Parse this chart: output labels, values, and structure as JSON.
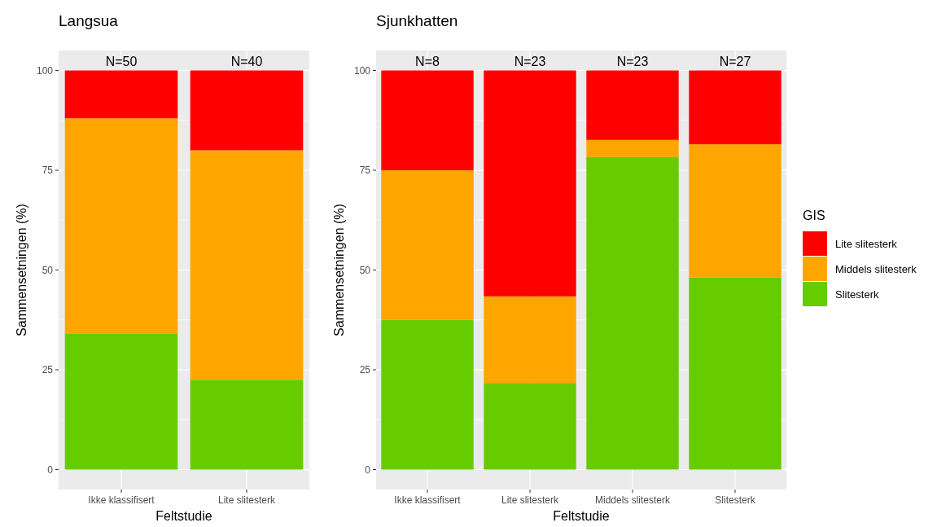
{
  "chart_data": [
    {
      "type": "bar",
      "title": "Langsua",
      "xlabel": "Feltstudie",
      "ylabel": "Sammensetningen (%)",
      "stacked": true,
      "categories": [
        "Ikke klassifisert",
        "Lite slitesterk"
      ],
      "series": [
        {
          "color": "#66cc00",
          "values": [
            34,
            22.5
          ]
        },
        {
          "color": "#ffa500",
          "values": [
            54,
            57.5
          ]
        },
        {
          "color": "#ff0000",
          "values": [
            12,
            20
          ]
        }
      ],
      "ylim": [
        -5,
        105
      ],
      "yticks": [
        0,
        25,
        50,
        75,
        100
      ],
      "grid": true,
      "legend": false,
      "annotations": [
        {
          "text": "N=50",
          "x": "Ikke klassifisert",
          "y": 100
        },
        {
          "text": "N=40",
          "x": "Lite slitesterk",
          "y": 100
        }
      ]
    },
    {
      "type": "bar",
      "title": "Sjunkhatten",
      "xlabel": "Feltstudie",
      "ylabel": "Sammensetningen (%)",
      "stacked": true,
      "legend_title": "GIS",
      "categories": [
        "Ikke klassifisert",
        "Lite slitesterk",
        "Middels slitesterk",
        "Slitesterk"
      ],
      "series": [
        {
          "name": "Slitesterk",
          "color": "#66cc00",
          "values": [
            37.5,
            21.7,
            78.3,
            48.1
          ]
        },
        {
          "name": "Middels slitesterk",
          "color": "#ffa500",
          "values": [
            37.5,
            21.7,
            4.3,
            33.4
          ]
        },
        {
          "name": "Lite slitesterk",
          "color": "#ff0000",
          "values": [
            25,
            56.6,
            17.4,
            18.5
          ]
        }
      ],
      "ylim": [
        -5,
        105
      ],
      "yticks": [
        0,
        25,
        50,
        75,
        100
      ],
      "grid": true,
      "legend": "right",
      "annotations": [
        {
          "text": "N=8",
          "x": "Ikke klassifisert",
          "y": 100
        },
        {
          "text": "N=23",
          "x": "Lite slitesterk",
          "y": 100
        },
        {
          "text": "N=23",
          "x": "Middels slitesterk",
          "y": 100
        },
        {
          "text": "N=27",
          "x": "Slitesterk",
          "y": 100
        }
      ]
    }
  ]
}
